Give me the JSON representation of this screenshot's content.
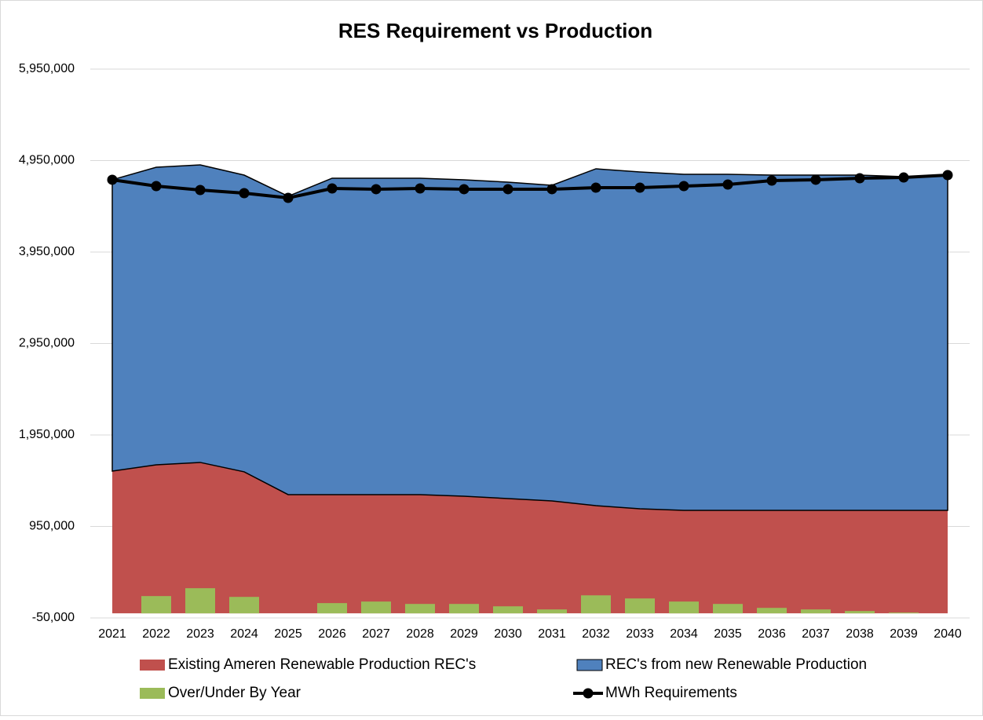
{
  "chart_data": {
    "type": "combo",
    "title": "RES Requirement vs Production",
    "categories": [
      "2021",
      "2022",
      "2023",
      "2024",
      "2025",
      "2026",
      "2027",
      "2028",
      "2029",
      "2030",
      "2031",
      "2032",
      "2033",
      "2034",
      "2035",
      "2036",
      "2037",
      "2038",
      "2039",
      "2040"
    ],
    "ylim": [
      -50000,
      5950000
    ],
    "yticks": [
      {
        "value": -50000,
        "label": "-50,000"
      },
      {
        "value": 950000,
        "label": "950,000"
      },
      {
        "value": 1950000,
        "label": "1,950,000"
      },
      {
        "value": 2950000,
        "label": "2,950,000"
      },
      {
        "value": 3950000,
        "label": "3,950,000"
      },
      {
        "value": 4950000,
        "label": "4,950,000"
      },
      {
        "value": 5950000,
        "label": "5,950,000"
      }
    ],
    "grid": true,
    "series": [
      {
        "name": "Existing Ameren Renewable Production REC's",
        "type": "area",
        "color": "#c0504d",
        "values": [
          1555000,
          1624000,
          1650000,
          1547000,
          1298000,
          1298000,
          1298000,
          1298000,
          1280000,
          1255000,
          1229000,
          1177000,
          1143000,
          1126000,
          1126000,
          1126000,
          1126000,
          1126000,
          1126000,
          1126000
        ]
      },
      {
        "name": "REC's from new Renewable Production",
        "type": "area",
        "color": "#4f81bd",
        "values": [
          3185000,
          3253000,
          3253000,
          3244000,
          3262000,
          3459000,
          3459000,
          3459000,
          3460000,
          3459000,
          3451000,
          3683000,
          3683000,
          3674000,
          3674000,
          3665000,
          3665000,
          3665000,
          3648000,
          3665000
        ]
      },
      {
        "name": "Over/Under By Year",
        "type": "bar",
        "color": "#9bbb59",
        "values": [
          0,
          189000,
          275000,
          180000,
          0,
          112000,
          129000,
          103000,
          103000,
          77000,
          43000,
          197000,
          163000,
          129000,
          103000,
          60000,
          43000,
          26000,
          9000,
          0
        ]
      },
      {
        "name": "MWh Requirements",
        "type": "line",
        "color": "#000000",
        "values": [
          4740000,
          4671000,
          4628000,
          4594000,
          4542000,
          4645000,
          4637000,
          4645000,
          4637000,
          4637000,
          4637000,
          4654000,
          4654000,
          4671000,
          4688000,
          4731000,
          4740000,
          4757000,
          4765000,
          4791000
        ]
      }
    ]
  }
}
